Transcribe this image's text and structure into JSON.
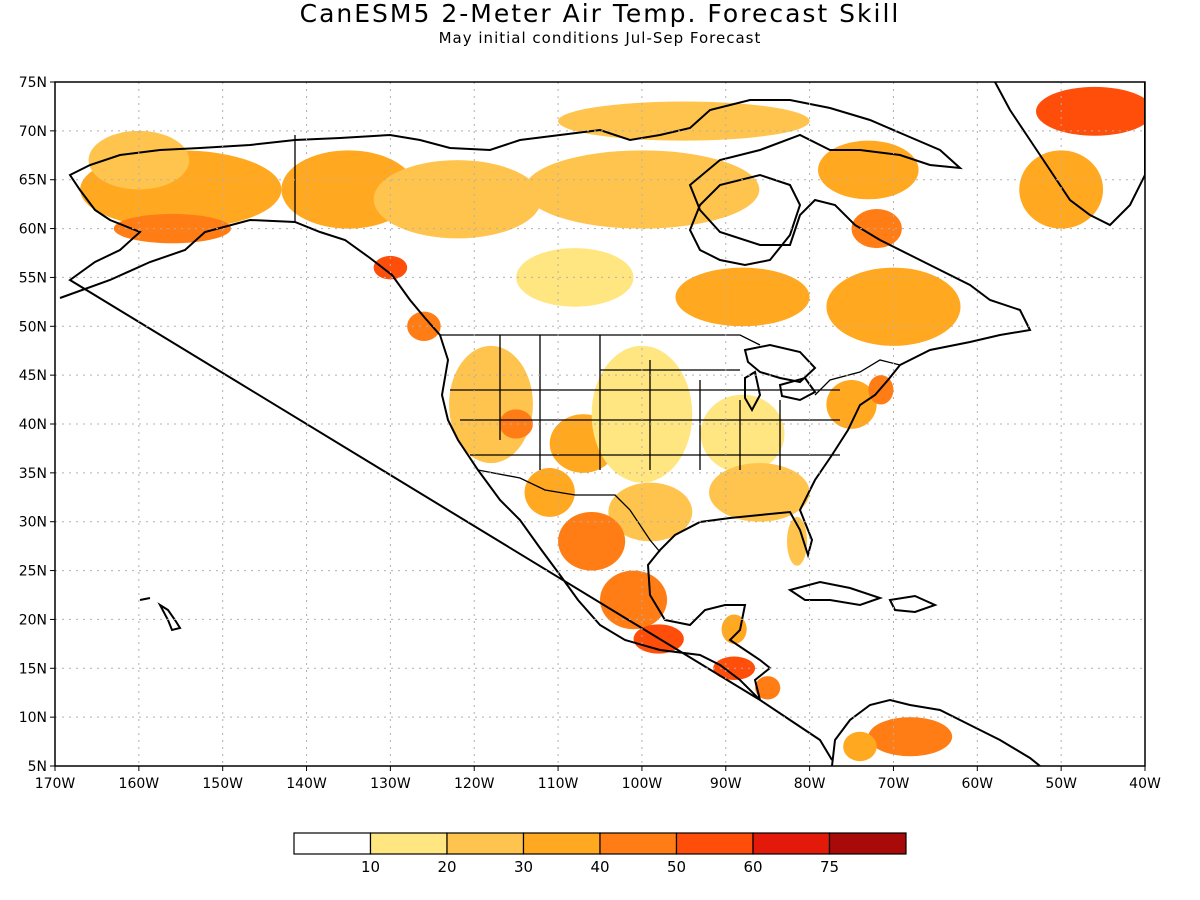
{
  "title": "CanESM5 2-Meter Air Temp. Forecast Skill",
  "subtitle": "May initial conditions   Jul-Sep Forecast",
  "axes": {
    "lon_min": -170,
    "lon_max": -40,
    "lat_min": 5,
    "lat_max": 75,
    "lon_ticks": [
      {
        "value": -170,
        "label": "170W"
      },
      {
        "value": -160,
        "label": "160W"
      },
      {
        "value": -150,
        "label": "150W"
      },
      {
        "value": -140,
        "label": "140W"
      },
      {
        "value": -130,
        "label": "130W"
      },
      {
        "value": -120,
        "label": "120W"
      },
      {
        "value": -110,
        "label": "110W"
      },
      {
        "value": -100,
        "label": "100W"
      },
      {
        "value": -90,
        "label": "90W"
      },
      {
        "value": -80,
        "label": "80W"
      },
      {
        "value": -70,
        "label": "70W"
      },
      {
        "value": -60,
        "label": "60W"
      },
      {
        "value": -50,
        "label": "50W"
      },
      {
        "value": -40,
        "label": "40W"
      }
    ],
    "lat_ticks": [
      {
        "value": 75,
        "label": "75N"
      },
      {
        "value": 70,
        "label": "70N"
      },
      {
        "value": 65,
        "label": "65N"
      },
      {
        "value": 60,
        "label": "60N"
      },
      {
        "value": 55,
        "label": "55N"
      },
      {
        "value": 50,
        "label": "50N"
      },
      {
        "value": 45,
        "label": "45N"
      },
      {
        "value": 40,
        "label": "40N"
      },
      {
        "value": 35,
        "label": "35N"
      },
      {
        "value": 30,
        "label": "30N"
      },
      {
        "value": 25,
        "label": "25N"
      },
      {
        "value": 20,
        "label": "20N"
      },
      {
        "value": 15,
        "label": "15N"
      },
      {
        "value": 10,
        "label": "10N"
      },
      {
        "value": 5,
        "label": "5N"
      }
    ],
    "grid": true
  },
  "colorbar": {
    "boxes": [
      {
        "color": "#ffffff"
      },
      {
        "color": "#ffe680"
      },
      {
        "color": "#ffc44d"
      },
      {
        "color": "#ffa820"
      },
      {
        "color": "#ff7d14"
      },
      {
        "color": "#ff4d0a"
      },
      {
        "color": "#e31a0a"
      },
      {
        "color": "#a80a0a"
      }
    ],
    "labels": [
      "10",
      "20",
      "30",
      "40",
      "50",
      "60",
      "75"
    ]
  },
  "regions": [
    {
      "name": "alaska",
      "level": 3,
      "lon": -155,
      "lat": 64,
      "rx": 12,
      "ry": 4
    },
    {
      "name": "alaska-south",
      "level": 4,
      "lon": -156,
      "lat": 60,
      "rx": 7,
      "ry": 1.5
    },
    {
      "name": "alaska-west",
      "level": 2,
      "lon": -160,
      "lat": 67,
      "rx": 6,
      "ry": 3
    },
    {
      "name": "yukon",
      "level": 3,
      "lon": -135,
      "lat": 64,
      "rx": 8,
      "ry": 4
    },
    {
      "name": "nw-territories",
      "level": 2,
      "lon": -122,
      "lat": 63,
      "rx": 10,
      "ry": 4
    },
    {
      "name": "nunavut",
      "level": 2,
      "lon": -100,
      "lat": 64,
      "rx": 14,
      "ry": 4
    },
    {
      "name": "arctic-islands",
      "level": 2,
      "lon": -95,
      "lat": 71,
      "rx": 15,
      "ry": 2
    },
    {
      "name": "bc-coast",
      "level": 5,
      "lon": -130,
      "lat": 56,
      "rx": 2,
      "ry": 1.2
    },
    {
      "name": "bc-south",
      "level": 4,
      "lon": -126,
      "lat": 50,
      "rx": 2,
      "ry": 1.5
    },
    {
      "name": "prairies",
      "level": 1,
      "lon": -108,
      "lat": 55,
      "rx": 7,
      "ry": 3
    },
    {
      "name": "ontario-north",
      "level": 3,
      "lon": -88,
      "lat": 53,
      "rx": 8,
      "ry": 3
    },
    {
      "name": "quebec",
      "level": 3,
      "lon": -70,
      "lat": 52,
      "rx": 8,
      "ry": 4
    },
    {
      "name": "ungava",
      "level": 4,
      "lon": -72,
      "lat": 60,
      "rx": 3,
      "ry": 2
    },
    {
      "name": "baffin",
      "level": 3,
      "lon": -73,
      "lat": 66,
      "rx": 6,
      "ry": 3
    },
    {
      "name": "greenland-west",
      "level": 3,
      "lon": -50,
      "lat": 64,
      "rx": 5,
      "ry": 4
    },
    {
      "name": "greenland-north",
      "level": 5,
      "lon": -46,
      "lat": 72,
      "rx": 7,
      "ry": 2.5
    },
    {
      "name": "us-west",
      "level": 2,
      "lon": -118,
      "lat": 42,
      "rx": 5,
      "ry": 6
    },
    {
      "name": "great-basin",
      "level": 4,
      "lon": -115,
      "lat": 40,
      "rx": 2,
      "ry": 1.5
    },
    {
      "name": "colorado",
      "level": 3,
      "lon": -107,
      "lat": 38,
      "rx": 4,
      "ry": 3
    },
    {
      "name": "arizona",
      "level": 3,
      "lon": -111,
      "lat": 33,
      "rx": 3,
      "ry": 2.5
    },
    {
      "name": "great-plains",
      "level": 1,
      "lon": -100,
      "lat": 41,
      "rx": 6,
      "ry": 7
    },
    {
      "name": "midwest",
      "level": 1,
      "lon": -88,
      "lat": 39,
      "rx": 5,
      "ry": 4
    },
    {
      "name": "southeast",
      "level": 2,
      "lon": -86,
      "lat": 33,
      "rx": 6,
      "ry": 3
    },
    {
      "name": "florida",
      "level": 2,
      "lon": -81.5,
      "lat": 28,
      "rx": 1.2,
      "ry": 2.5
    },
    {
      "name": "northeast",
      "level": 3,
      "lon": -75,
      "lat": 42,
      "rx": 3,
      "ry": 2.5
    },
    {
      "name": "new-england",
      "level": 4,
      "lon": -71.5,
      "lat": 43.5,
      "rx": 1.5,
      "ry": 1.5
    },
    {
      "name": "texas",
      "level": 2,
      "lon": -99,
      "lat": 31,
      "rx": 5,
      "ry": 3
    },
    {
      "name": "mexico-north",
      "level": 4,
      "lon": -106,
      "lat": 28,
      "rx": 4,
      "ry": 3
    },
    {
      "name": "mexico-central",
      "level": 4,
      "lon": -101,
      "lat": 22,
      "rx": 4,
      "ry": 3
    },
    {
      "name": "mexico-south",
      "level": 5,
      "lon": -98,
      "lat": 18,
      "rx": 3,
      "ry": 1.5
    },
    {
      "name": "yucatan",
      "level": 3,
      "lon": -89,
      "lat": 19,
      "rx": 1.5,
      "ry": 1.5
    },
    {
      "name": "central-america",
      "level": 5,
      "lon": -89,
      "lat": 15,
      "rx": 2.5,
      "ry": 1.2
    },
    {
      "name": "nicaragua",
      "level": 4,
      "lon": -85,
      "lat": 13,
      "rx": 1.5,
      "ry": 1.2
    },
    {
      "name": "venezuela",
      "level": 4,
      "lon": -68,
      "lat": 8,
      "rx": 5,
      "ry": 2
    },
    {
      "name": "colombia",
      "level": 3,
      "lon": -74,
      "lat": 7,
      "rx": 2,
      "ry": 1.5
    }
  ]
}
